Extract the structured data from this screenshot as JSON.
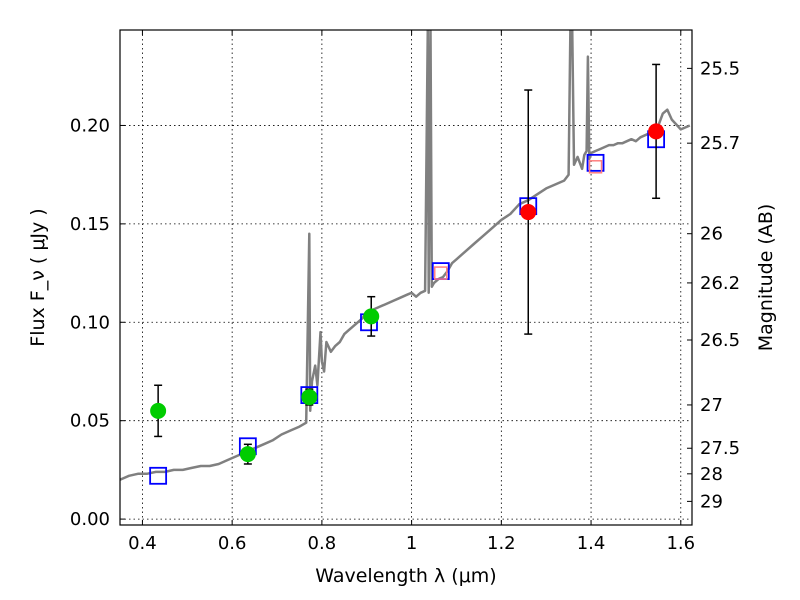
{
  "chart_data": {
    "type": "scatter",
    "title": "",
    "xlabel": "Wavelength  λ (μm)",
    "ylabel": "Flux  F_ν  ( μJy )",
    "ylabel_right": "Magnitude (AB)",
    "xlim": [
      0.35,
      1.625
    ],
    "ylim": [
      -0.003,
      0.2485
    ],
    "grid": true,
    "x_ticks": [
      0.4,
      0.6,
      0.8,
      1.0,
      1.2,
      1.4,
      1.6
    ],
    "x_tick_labels": [
      "0.4",
      "0.6",
      "0.8",
      "1",
      "1.2",
      "1.4",
      "1.6"
    ],
    "y_ticks": [
      0.0,
      0.05,
      0.1,
      0.15,
      0.2
    ],
    "y_tick_labels": [
      "0.00",
      "0.05",
      "0.10",
      "0.15",
      "0.20"
    ],
    "right_ticks": [
      {
        "label": "25.5",
        "flux": 0.229
      },
      {
        "label": "25.7",
        "flux": 0.191
      },
      {
        "label": "26",
        "flux": 0.145
      },
      {
        "label": "26.2",
        "flux": 0.12
      },
      {
        "label": "26.5",
        "flux": 0.091
      },
      {
        "label": "27",
        "flux": 0.058
      },
      {
        "label": "27.5",
        "flux": 0.036
      },
      {
        "label": "28",
        "flux": 0.023
      },
      {
        "label": "29",
        "flux": 0.009
      }
    ],
    "series": [
      {
        "style": "line",
        "color": "#808080",
        "x": [
          0.35,
          0.37,
          0.39,
          0.41,
          0.43,
          0.45,
          0.47,
          0.49,
          0.51,
          0.53,
          0.55,
          0.57,
          0.59,
          0.61,
          0.63,
          0.65,
          0.67,
          0.69,
          0.71,
          0.73,
          0.75,
          0.765,
          0.772,
          0.774,
          0.778,
          0.785,
          0.79,
          0.797,
          0.8,
          0.805,
          0.81,
          0.82,
          0.83,
          0.84,
          0.85,
          0.86,
          0.87,
          0.88,
          0.89,
          0.9,
          0.91,
          0.92,
          0.93,
          0.94,
          0.95,
          0.96,
          0.97,
          0.98,
          0.99,
          1.0,
          1.01,
          1.02,
          1.03,
          1.036,
          1.038,
          1.042,
          1.045,
          1.05,
          1.06,
          1.07,
          1.08,
          1.09,
          1.1,
          1.12,
          1.14,
          1.16,
          1.18,
          1.2,
          1.22,
          1.24,
          1.26,
          1.28,
          1.3,
          1.32,
          1.34,
          1.35,
          1.354,
          1.358,
          1.362,
          1.366,
          1.37,
          1.38,
          1.385,
          1.39,
          1.393,
          1.396,
          1.4,
          1.41,
          1.42,
          1.43,
          1.44,
          1.45,
          1.46,
          1.47,
          1.48,
          1.49,
          1.5,
          1.51,
          1.52,
          1.53,
          1.54,
          1.55,
          1.56,
          1.57,
          1.58,
          1.6,
          1.62
        ],
        "values": [
          0.02,
          0.022,
          0.023,
          0.023,
          0.024,
          0.024,
          0.025,
          0.025,
          0.026,
          0.027,
          0.027,
          0.028,
          0.03,
          0.032,
          0.034,
          0.036,
          0.038,
          0.04,
          0.043,
          0.045,
          0.047,
          0.049,
          0.145,
          0.055,
          0.07,
          0.078,
          0.068,
          0.095,
          0.08,
          0.075,
          0.09,
          0.085,
          0.088,
          0.09,
          0.094,
          0.096,
          0.098,
          0.1,
          0.102,
          0.105,
          0.106,
          0.107,
          0.108,
          0.109,
          0.11,
          0.111,
          0.112,
          0.113,
          0.114,
          0.115,
          0.113,
          0.115,
          0.116,
          0.25,
          0.115,
          0.25,
          0.118,
          0.12,
          0.122,
          0.123,
          0.126,
          0.13,
          0.132,
          0.136,
          0.14,
          0.144,
          0.148,
          0.152,
          0.155,
          0.16,
          0.162,
          0.165,
          0.168,
          0.17,
          0.172,
          0.175,
          0.25,
          0.25,
          0.18,
          0.182,
          0.184,
          0.178,
          0.185,
          0.187,
          0.235,
          0.183,
          0.186,
          0.187,
          0.188,
          0.189,
          0.19,
          0.19,
          0.191,
          0.191,
          0.192,
          0.193,
          0.192,
          0.194,
          0.195,
          0.196,
          0.197,
          0.2,
          0.206,
          0.208,
          0.203,
          0.198,
          0.2
        ]
      },
      {
        "name": "",
        "style": "open-square",
        "color": "#0000ff",
        "x": [
          0.435,
          0.635,
          0.772,
          0.905,
          1.065,
          1.26,
          1.41,
          1.545
        ],
        "values": [
          0.022,
          0.037,
          0.063,
          0.1,
          0.126,
          0.159,
          0.181,
          0.193
        ]
      },
      {
        "name": "",
        "style": "small-open-square",
        "color": "#ff8080",
        "x": [
          1.065,
          1.41
        ],
        "values": [
          0.125,
          0.179
        ]
      },
      {
        "name": "",
        "style": "filled-circle",
        "color": "#00cc00",
        "x": [
          0.435,
          0.635,
          0.772,
          0.91
        ],
        "values": [
          0.055,
          0.033,
          0.062,
          0.103
        ],
        "err": [
          0.013,
          0.005,
          0.004,
          0.01
        ]
      },
      {
        "name": "",
        "style": "filled-circle",
        "color": "#ff0000",
        "x": [
          1.26,
          1.545
        ],
        "values": [
          0.156,
          0.197
        ],
        "err": [
          0.062,
          0.034
        ]
      }
    ]
  }
}
